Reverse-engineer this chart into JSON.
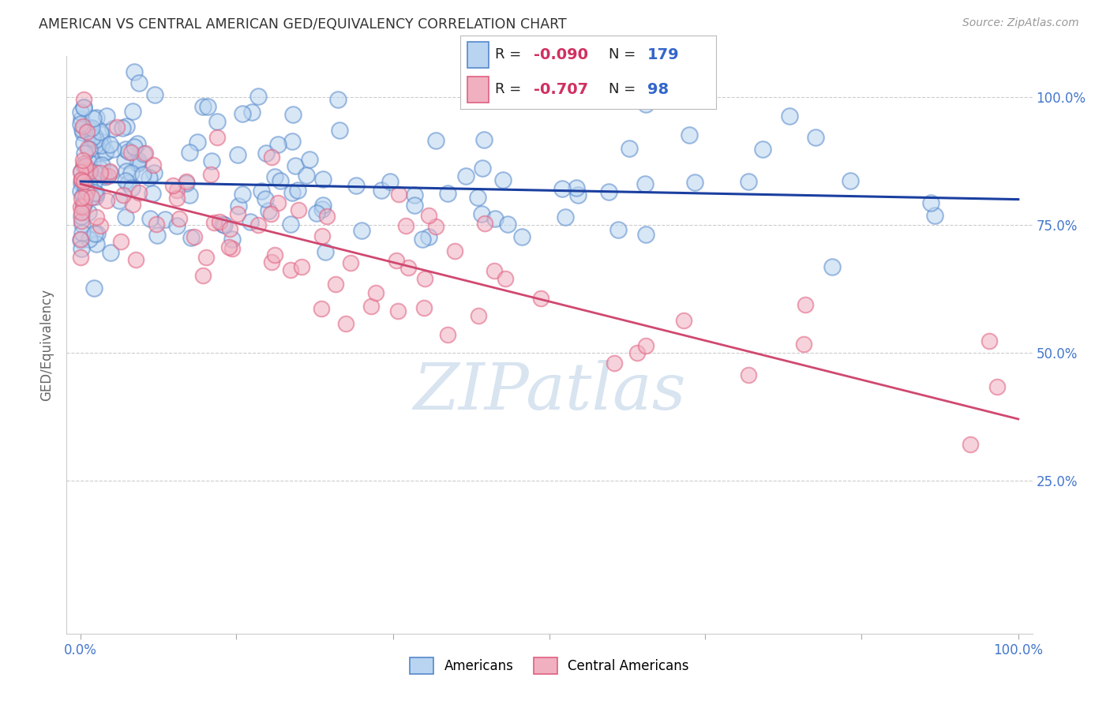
{
  "title": "AMERICAN VS CENTRAL AMERICAN GED/EQUIVALENCY CORRELATION CHART",
  "source": "Source: ZipAtlas.com",
  "ylabel": "GED/Equivalency",
  "ytick_labels": [
    "25.0%",
    "50.0%",
    "75.0%",
    "100.0%"
  ],
  "ytick_positions": [
    0.25,
    0.5,
    0.75,
    1.0
  ],
  "blue_face_color": "#b8d4f0",
  "blue_edge_color": "#5588cc",
  "pink_face_color": "#f0b0c0",
  "pink_edge_color": "#e06080",
  "blue_line_color": "#1a3fa0",
  "pink_line_color": "#d04870",
  "background_color": "#ffffff",
  "watermark_text": "ZIPatlas",
  "watermark_color": "#d8e4f0",
  "americans_N": 179,
  "central_americans_N": 98,
  "blue_trend_x0": 0.0,
  "blue_trend_y0": 0.835,
  "blue_trend_x1": 1.0,
  "blue_trend_y1": 0.8,
  "pink_trend_x0": 0.0,
  "pink_trend_y0": 0.83,
  "pink_trend_x1": 1.0,
  "pink_trend_y1": 0.37,
  "seed": 42,
  "ylim_min": -0.05,
  "ylim_max": 1.08,
  "xlim_min": -0.015,
  "xlim_max": 1.015
}
